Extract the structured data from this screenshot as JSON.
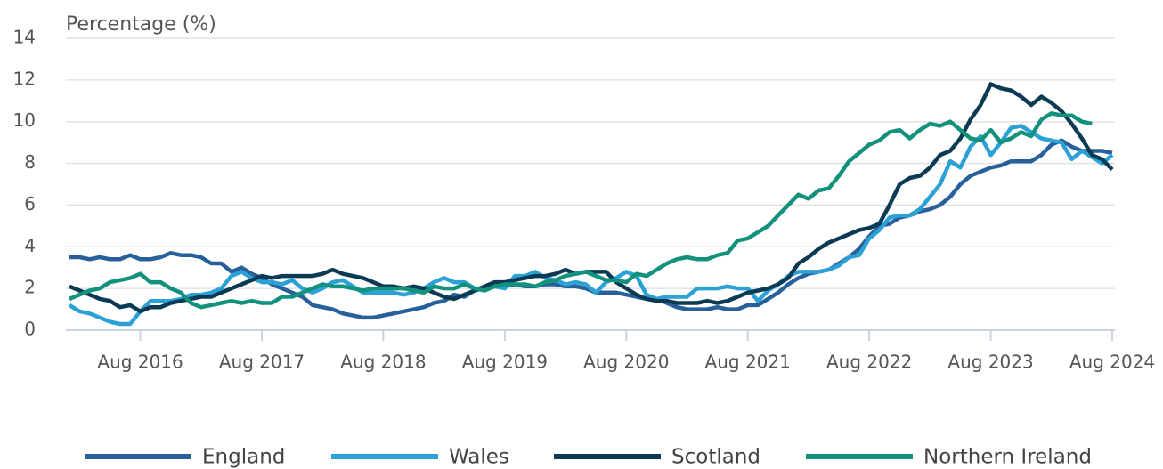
{
  "chart_data": {
    "type": "line",
    "y_axis_label": "Percentage (%)",
    "x": [
      "2016-01",
      "2016-02",
      "2016-03",
      "2016-04",
      "2016-05",
      "2016-06",
      "2016-07",
      "2016-08",
      "2016-09",
      "2016-10",
      "2016-11",
      "2016-12",
      "2017-01",
      "2017-02",
      "2017-03",
      "2017-04",
      "2017-05",
      "2017-06",
      "2017-07",
      "2017-08",
      "2017-09",
      "2017-10",
      "2017-11",
      "2017-12",
      "2018-01",
      "2018-02",
      "2018-03",
      "2018-04",
      "2018-05",
      "2018-06",
      "2018-07",
      "2018-08",
      "2018-09",
      "2018-10",
      "2018-11",
      "2018-12",
      "2019-01",
      "2019-02",
      "2019-03",
      "2019-04",
      "2019-05",
      "2019-06",
      "2019-07",
      "2019-08",
      "2019-09",
      "2019-10",
      "2019-11",
      "2019-12",
      "2020-01",
      "2020-02",
      "2020-03",
      "2020-04",
      "2020-05",
      "2020-06",
      "2020-07",
      "2020-08",
      "2020-09",
      "2020-10",
      "2020-11",
      "2020-12",
      "2021-01",
      "2021-02",
      "2021-03",
      "2021-04",
      "2021-05",
      "2021-06",
      "2021-07",
      "2021-08",
      "2021-09",
      "2021-10",
      "2021-11",
      "2021-12",
      "2022-01",
      "2022-02",
      "2022-03",
      "2022-04",
      "2022-05",
      "2022-06",
      "2022-07",
      "2022-08",
      "2022-09",
      "2022-10",
      "2022-11",
      "2022-12",
      "2023-01",
      "2023-02",
      "2023-03",
      "2023-04",
      "2023-05",
      "2023-06",
      "2023-07",
      "2023-08",
      "2023-09",
      "2023-10",
      "2023-11",
      "2023-12",
      "2024-01",
      "2024-02",
      "2024-03",
      "2024-04",
      "2024-05",
      "2024-06",
      "2024-07",
      "2024-08"
    ],
    "series": [
      {
        "name": "England",
        "color": "#27609a",
        "values": [
          3.5,
          3.5,
          3.4,
          3.5,
          3.4,
          3.4,
          3.6,
          3.4,
          3.4,
          3.5,
          3.7,
          3.6,
          3.6,
          3.5,
          3.2,
          3.2,
          2.8,
          3.0,
          2.7,
          2.5,
          2.2,
          2.0,
          1.8,
          1.6,
          1.2,
          1.1,
          1.0,
          0.8,
          0.7,
          0.6,
          0.6,
          0.7,
          0.8,
          0.9,
          1.0,
          1.1,
          1.3,
          1.4,
          1.7,
          1.6,
          1.9,
          2.0,
          2.1,
          2.1,
          2.2,
          2.1,
          2.1,
          2.2,
          2.2,
          2.1,
          2.1,
          2.0,
          1.8,
          1.8,
          1.8,
          1.7,
          1.6,
          1.5,
          1.5,
          1.3,
          1.1,
          1.0,
          1.0,
          1.0,
          1.1,
          1.0,
          1.0,
          1.2,
          1.2,
          1.5,
          1.8,
          2.2,
          2.5,
          2.7,
          2.8,
          2.9,
          3.2,
          3.5,
          3.9,
          4.5,
          5.0,
          5.1,
          5.4,
          5.5,
          5.7,
          5.8,
          6.0,
          6.4,
          7.0,
          7.4,
          7.6,
          7.8,
          7.9,
          8.1,
          8.1,
          8.1,
          8.4,
          8.9,
          9.1,
          8.8,
          8.6,
          8.6,
          8.6,
          8.5
        ]
      },
      {
        "name": "Wales",
        "color": "#2ba1d5",
        "values": [
          1.2,
          0.9,
          0.8,
          0.6,
          0.4,
          0.3,
          0.3,
          0.9,
          1.4,
          1.4,
          1.4,
          1.5,
          1.7,
          1.7,
          1.8,
          2.0,
          2.6,
          2.8,
          2.5,
          2.3,
          2.3,
          2.2,
          2.4,
          2.0,
          1.8,
          2.0,
          2.3,
          2.4,
          2.1,
          1.8,
          1.8,
          1.8,
          1.8,
          1.7,
          1.8,
          2.0,
          2.3,
          2.5,
          2.3,
          2.3,
          2.0,
          2.0,
          2.1,
          2.0,
          2.6,
          2.6,
          2.8,
          2.5,
          2.4,
          2.2,
          2.3,
          2.2,
          1.8,
          2.3,
          2.5,
          2.8,
          2.6,
          1.7,
          1.5,
          1.6,
          1.6,
          1.6,
          2.0,
          2.0,
          2.0,
          2.1,
          2.0,
          2.0,
          1.4,
          1.9,
          2.2,
          2.6,
          2.8,
          2.8,
          2.8,
          2.9,
          3.1,
          3.5,
          3.6,
          4.4,
          4.8,
          5.4,
          5.5,
          5.5,
          5.8,
          6.4,
          7.0,
          8.1,
          7.8,
          8.8,
          9.3,
          8.4,
          9.0,
          9.7,
          9.8,
          9.5,
          9.2,
          9.1,
          9.0,
          8.2,
          8.6,
          8.3,
          8.0,
          8.4
        ]
      },
      {
        "name": "Scotland",
        "color": "#0b3b54",
        "values": [
          2.1,
          1.9,
          1.7,
          1.5,
          1.4,
          1.1,
          1.2,
          0.9,
          1.1,
          1.1,
          1.3,
          1.4,
          1.5,
          1.6,
          1.6,
          1.8,
          2.0,
          2.2,
          2.4,
          2.6,
          2.5,
          2.6,
          2.6,
          2.6,
          2.6,
          2.7,
          2.9,
          2.7,
          2.6,
          2.5,
          2.3,
          2.1,
          2.1,
          2.0,
          2.1,
          2.0,
          1.8,
          1.6,
          1.5,
          1.7,
          1.9,
          2.1,
          2.3,
          2.3,
          2.4,
          2.5,
          2.6,
          2.6,
          2.7,
          2.9,
          2.7,
          2.8,
          2.8,
          2.8,
          2.3,
          2.0,
          1.7,
          1.5,
          1.4,
          1.4,
          1.3,
          1.3,
          1.3,
          1.4,
          1.3,
          1.4,
          1.6,
          1.8,
          1.9,
          2.0,
          2.2,
          2.5,
          3.2,
          3.5,
          3.9,
          4.2,
          4.4,
          4.6,
          4.8,
          4.9,
          5.1,
          6.0,
          7.0,
          7.3,
          7.4,
          7.8,
          8.4,
          8.6,
          9.2,
          10.1,
          10.8,
          11.8,
          11.6,
          11.5,
          11.2,
          10.8,
          11.2,
          10.9,
          10.5,
          9.9,
          9.2,
          8.4,
          8.2,
          7.7
        ]
      },
      {
        "name": "Northern Ireland",
        "color": "#12917c",
        "values": [
          1.5,
          1.7,
          1.9,
          2.0,
          2.3,
          2.4,
          2.5,
          2.7,
          2.3,
          2.3,
          2.0,
          1.8,
          1.3,
          1.1,
          1.2,
          1.3,
          1.4,
          1.3,
          1.4,
          1.3,
          1.3,
          1.6,
          1.6,
          1.8,
          2.0,
          2.2,
          2.1,
          2.1,
          2.0,
          1.9,
          2.0,
          2.0,
          2.0,
          2.0,
          1.9,
          1.8,
          2.1,
          2.0,
          2.0,
          2.2,
          2.0,
          1.9,
          2.1,
          2.2,
          2.2,
          2.2,
          2.1,
          2.3,
          2.4,
          2.6,
          2.7,
          2.8,
          2.6,
          2.4,
          2.4,
          2.3,
          2.7,
          2.6,
          2.9,
          3.2,
          3.4,
          3.5,
          3.4,
          3.4,
          3.6,
          3.7,
          4.3,
          4.4,
          4.7,
          5.0,
          5.5,
          6.0,
          6.5,
          6.3,
          6.7,
          6.8,
          7.4,
          8.1,
          8.5,
          8.9,
          9.1,
          9.5,
          9.6,
          9.2,
          9.6,
          9.9,
          9.8,
          10.0,
          9.6,
          9.2,
          9.1,
          9.6,
          9.0,
          9.2,
          9.5,
          9.3,
          10.1,
          10.4,
          10.3,
          10.3,
          10.0,
          9.9,
          null,
          null
        ]
      }
    ],
    "xlim": [
      "2016-01",
      "2024-08"
    ],
    "xticks": [
      {
        "value": "2016-08",
        "label": "Aug 2016"
      },
      {
        "value": "2017-08",
        "label": "Aug 2017"
      },
      {
        "value": "2018-08",
        "label": "Aug 2018"
      },
      {
        "value": "2019-08",
        "label": "Aug 2019"
      },
      {
        "value": "2020-08",
        "label": "Aug 2020"
      },
      {
        "value": "2021-08",
        "label": "Aug 2021"
      },
      {
        "value": "2022-08",
        "label": "Aug 2022"
      },
      {
        "value": "2023-08",
        "label": "Aug 2023"
      },
      {
        "value": "2024-08",
        "label": "Aug 2024"
      }
    ],
    "ylim": [
      0,
      14
    ],
    "yticks": [
      0,
      2,
      4,
      6,
      8,
      10,
      12,
      14
    ],
    "grid": true,
    "legend": "bottom"
  }
}
